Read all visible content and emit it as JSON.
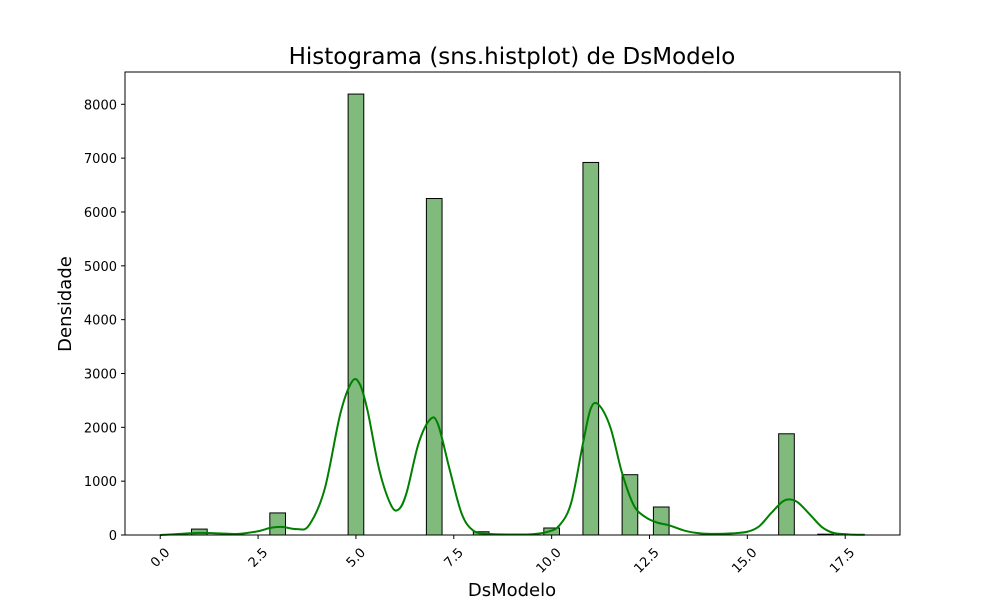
{
  "chart_data": {
    "type": "bar",
    "title": "Histograma (sns.histplot) de DsModelo",
    "xlabel": "DsModelo",
    "ylabel": "Densidade",
    "xlim": [
      -0.9,
      18.9
    ],
    "ylim": [
      0,
      8600
    ],
    "xticks": [
      0.0,
      2.5,
      5.0,
      7.5,
      10.0,
      12.5,
      15.0,
      17.5
    ],
    "xtick_labels": [
      "0.0",
      "2.5",
      "5.0",
      "7.5",
      "10.0",
      "12.5",
      "15.0",
      "17.5"
    ],
    "yticks": [
      0,
      1000,
      2000,
      3000,
      4000,
      5000,
      6000,
      7000,
      8000
    ],
    "ytick_labels": [
      "0",
      "1000",
      "2000",
      "3000",
      "4000",
      "5000",
      "6000",
      "7000",
      "8000"
    ],
    "grid": false,
    "legend": "none",
    "colors": {
      "bar_fill": "#80bb7d",
      "bar_edge": "#000000",
      "kde_line": "#008000"
    },
    "bins": [
      {
        "x0": 0.8,
        "x1": 1.2,
        "value": 110
      },
      {
        "x0": 2.8,
        "x1": 3.2,
        "value": 410
      },
      {
        "x0": 4.8,
        "x1": 5.2,
        "value": 8190
      },
      {
        "x0": 6.8,
        "x1": 7.2,
        "value": 6250
      },
      {
        "x0": 8.0,
        "x1": 8.4,
        "value": 60
      },
      {
        "x0": 9.8,
        "x1": 10.2,
        "value": 130
      },
      {
        "x0": 10.8,
        "x1": 11.2,
        "value": 6920
      },
      {
        "x0": 11.8,
        "x1": 12.2,
        "value": 1120
      },
      {
        "x0": 12.6,
        "x1": 13.0,
        "value": 520
      },
      {
        "x0": 15.8,
        "x1": 16.2,
        "value": 1880
      },
      {
        "x0": 16.8,
        "x1": 17.2,
        "value": 15
      }
    ],
    "kde": {
      "x": [
        0,
        0.5,
        1,
        1.5,
        2,
        2.5,
        2.8,
        3.1,
        3.5,
        3.8,
        4.2,
        4.6,
        4.9,
        5.1,
        5.3,
        5.6,
        5.9,
        6.1,
        6.3,
        6.6,
        6.9,
        7.1,
        7.4,
        7.7,
        8.0,
        8.4,
        9.0,
        9.5,
        9.9,
        10.2,
        10.5,
        10.8,
        11.0,
        11.2,
        11.5,
        11.8,
        12.1,
        12.4,
        12.7,
        13.0,
        13.4,
        13.8,
        14.2,
        14.6,
        15.0,
        15.3,
        15.6,
        15.9,
        16.1,
        16.3,
        16.6,
        16.9,
        17.2,
        17.6,
        18.0
      ],
      "y": [
        0,
        20,
        40,
        30,
        20,
        70,
        130,
        150,
        110,
        180,
        850,
        2250,
        2850,
        2800,
        2300,
        1200,
        550,
        480,
        800,
        1700,
        2150,
        2050,
        1200,
        400,
        80,
        20,
        10,
        15,
        60,
        180,
        600,
        1700,
        2350,
        2420,
        2000,
        1150,
        550,
        330,
        230,
        180,
        80,
        30,
        20,
        30,
        60,
        160,
        400,
        620,
        660,
        600,
        380,
        150,
        40,
        10,
        5
      ]
    }
  }
}
